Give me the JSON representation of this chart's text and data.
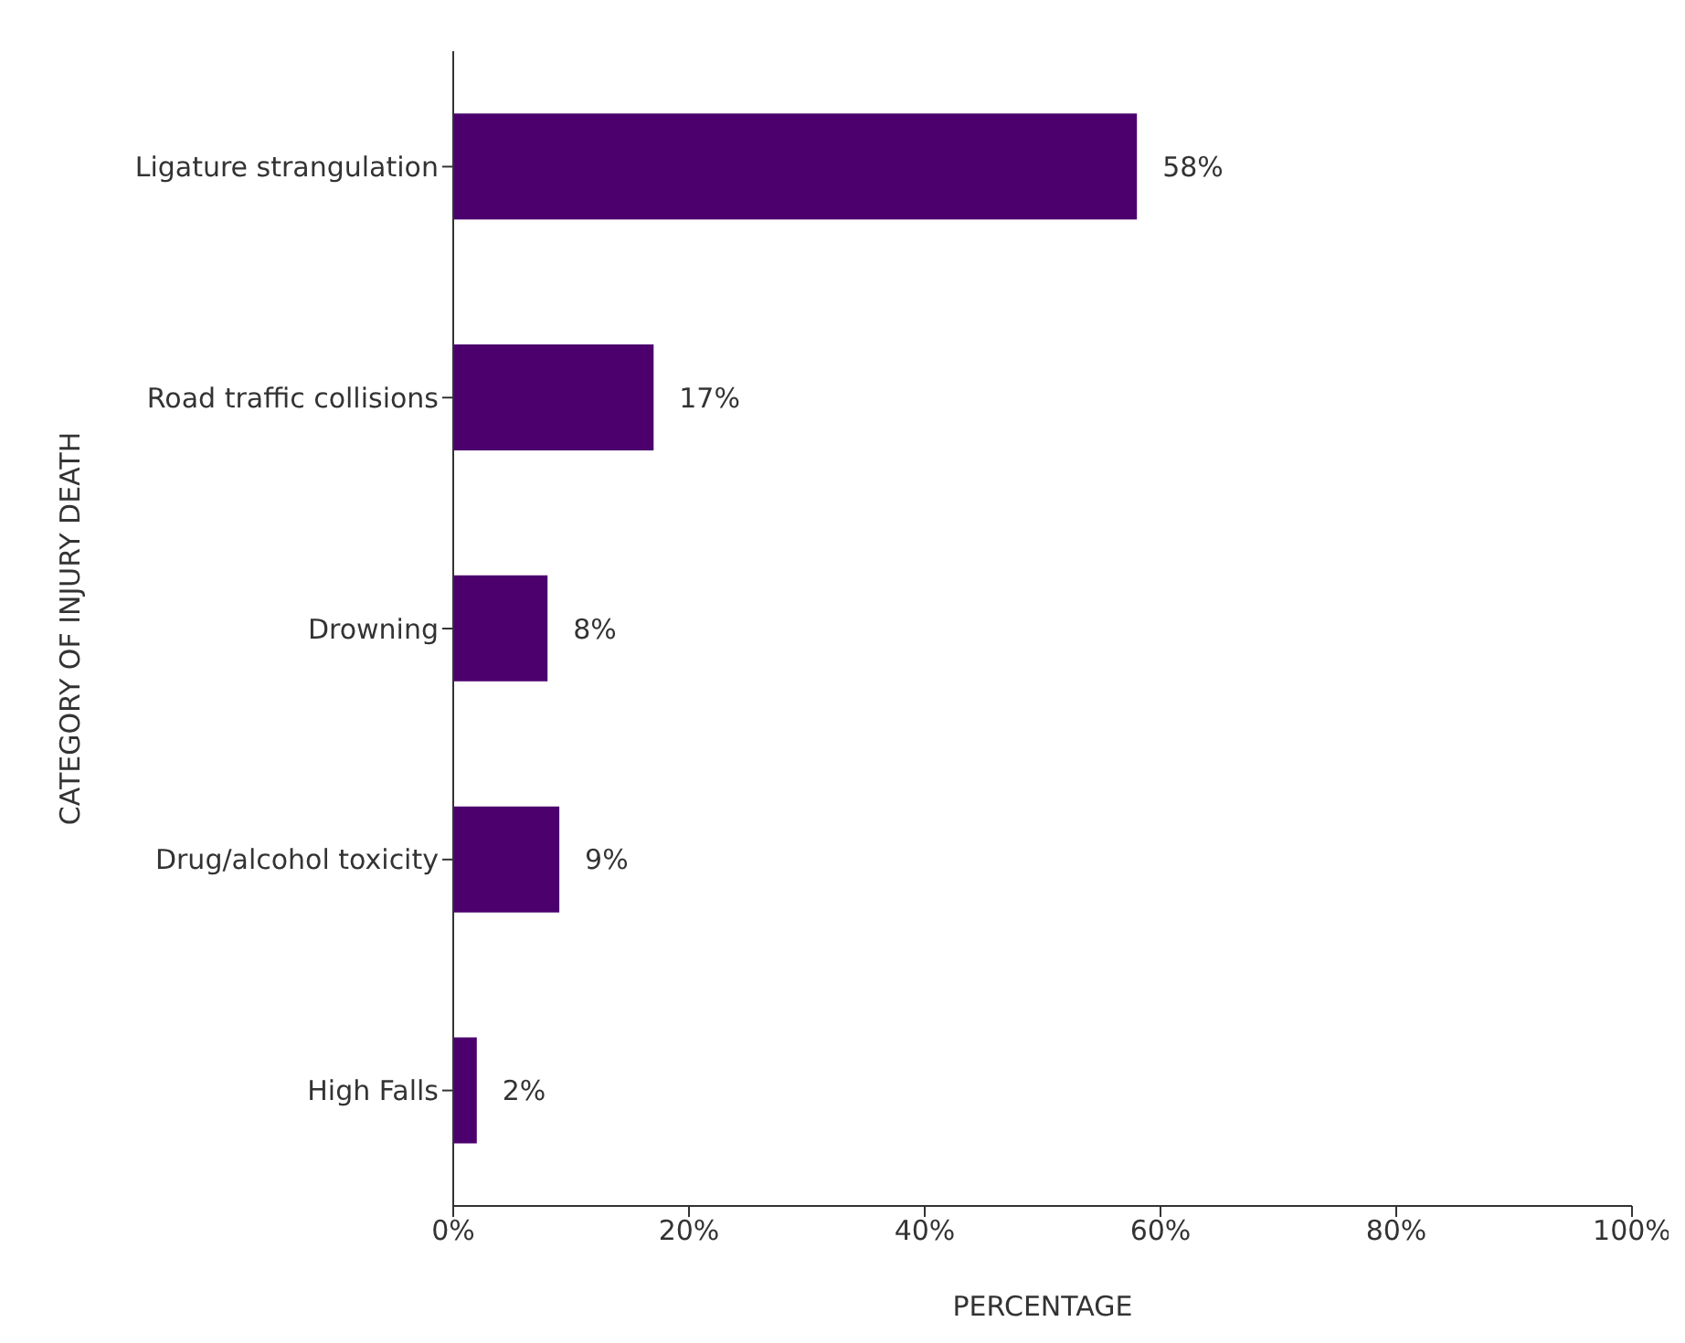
{
  "chart_data": {
    "type": "bar",
    "orientation": "horizontal",
    "xlabel": "PERCENTAGE",
    "ylabel": "CATEGORY OF INJURY DEATH",
    "categories": [
      "Ligature strangulation",
      "Road traffic collisions",
      "Drowning",
      "Drug/alcohol toxicity",
      "High Falls"
    ],
    "values": [
      58,
      17,
      8,
      9,
      2
    ],
    "value_labels": [
      "58%",
      "17%",
      "8%",
      "9%",
      "2%"
    ],
    "color": "#4b006e",
    "xlim": [
      0,
      100
    ],
    "xticks": [
      {
        "value": 0,
        "label": "0%"
      },
      {
        "value": 20,
        "label": "20%"
      },
      {
        "value": 40,
        "label": "40%"
      },
      {
        "value": 60,
        "label": "60%"
      },
      {
        "value": 80,
        "label": "80%"
      },
      {
        "value": 100,
        "label": "100%"
      }
    ],
    "grid": false
  }
}
